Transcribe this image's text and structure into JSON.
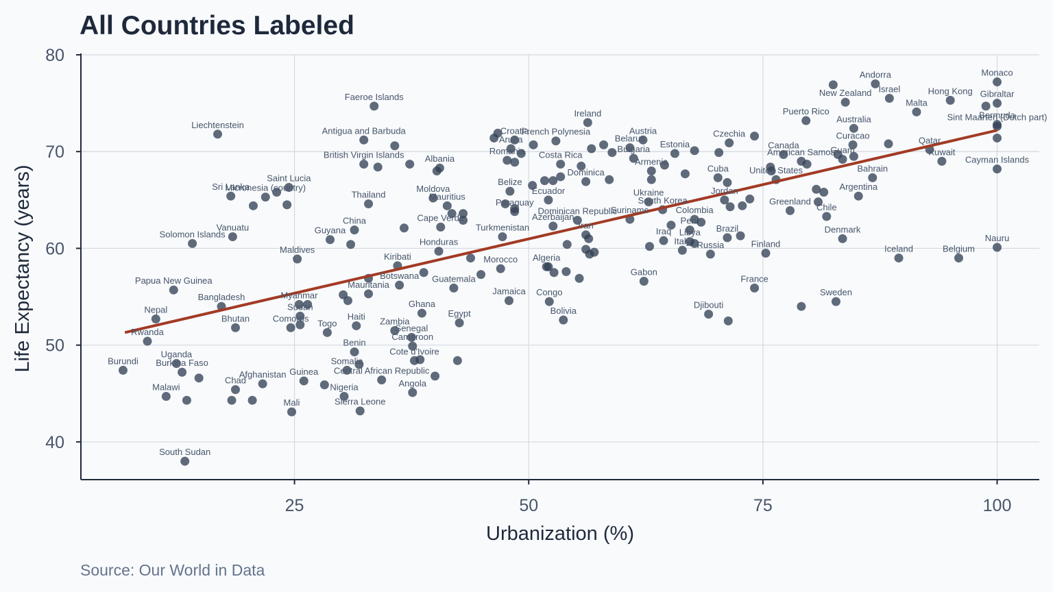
{
  "chart_data": {
    "type": "scatter",
    "title": "All Countries Labeled",
    "xlabel": "Urbanization (%)",
    "ylabel": "Life Expectancy (years)",
    "source": "Source: Our World in Data",
    "xlim": [
      2.2,
      104.5
    ],
    "ylim": [
      36.1,
      80
    ],
    "xticks": [
      25,
      50,
      75,
      100
    ],
    "yticks": [
      40,
      50,
      60,
      70,
      80
    ],
    "grid": true,
    "color": "#334155",
    "trend": {
      "color": "#a33a24",
      "x": [
        6.9,
        100
      ],
      "y": [
        51.3,
        72.2
      ]
    },
    "x": [
      6.7,
      9.3,
      10.2,
      12.1,
      14.1,
      12.4,
      13.0,
      11.3,
      13.3,
      16.8,
      18.2,
      18.4,
      17.2,
      18.7,
      21.6,
      18.7,
      18.3,
      20.5,
      13.5,
      14.8,
      24.4,
      21.9,
      20.6,
      23.1,
      24.2,
      25.3,
      25.5,
      25.6,
      24.6,
      26.4,
      25.6,
      24.7,
      26.0,
      32.4,
      33.5,
      32.4,
      33.9,
      35.7,
      37.3,
      28.8,
      32.9,
      31.4,
      31.0,
      36.7,
      28.5,
      31.6,
      31.4,
      30.6,
      31.9,
      30.3,
      28.2,
      32.0,
      34.3,
      30.2,
      30.7,
      32.9,
      32.9,
      36.2,
      36.0,
      35.7,
      37.5,
      37.6,
      37.8,
      38.4,
      37.6,
      38.6,
      38.8,
      40.4,
      40.6,
      39.8,
      40.5,
      40.2,
      41.3,
      41.8,
      43.0,
      43.0,
      43.8,
      40.0,
      42.4,
      42.6,
      42.0,
      44.9,
      47.0,
      47.9,
      47.2,
      48.5,
      48.5,
      48.0,
      47.5,
      47.7,
      48.5,
      49.2,
      48.5,
      46.7,
      46.3,
      48.1,
      50.5,
      52.9,
      53.4,
      56.1,
      53.4,
      51.7,
      52.6,
      50.4,
      52.1,
      52.6,
      55.2,
      56.1,
      56.4,
      54.1,
      56.1,
      57.0,
      56.5,
      51.9,
      52.1,
      52.7,
      54.0,
      55.4,
      52.2,
      53.7,
      56.3,
      56.7,
      58.0,
      58.9,
      60.8,
      55.6,
      58.6,
      62.2,
      61.2,
      64.5,
      63.1,
      63.1,
      62.8,
      64.3,
      60.8,
      65.6,
      66.7,
      67.7,
      68.4,
      67.2,
      65.2,
      64.4,
      67.2,
      66.4,
      69.4,
      62.3,
      69.2,
      71.3,
      62.9,
      67.7,
      71.2,
      72.6,
      70.9,
      71.5,
      72.8,
      73.6,
      70.2,
      71.2,
      71.4,
      74.1,
      70.3,
      67.7,
      76.4,
      75.8,
      75.9,
      77.2,
      79.1,
      79.7,
      75.3,
      74.1,
      77.9,
      79.6,
      79.1,
      82.8,
      81.8,
      80.9,
      80.7,
      81.5,
      83.5,
      85.2,
      86.7,
      83.5,
      83.0,
      84.6,
      84.7,
      84.7,
      83.8,
      87.0,
      82.5,
      88.5,
      88.4,
      91.4,
      95.0,
      92.8,
      94.1,
      89.5,
      95.9,
      100,
      100,
      98.8,
      100,
      100,
      100,
      100,
      100
    ],
    "y": [
      47.4,
      50.4,
      52.7,
      55.7,
      60.5,
      48.1,
      47.2,
      44.7,
      38.0,
      71.8,
      65.4,
      61.2,
      54.0,
      51.8,
      46.0,
      45.4,
      44.3,
      44.3,
      44.3,
      46.6,
      66.3,
      65.3,
      64.4,
      65.8,
      64.5,
      58.9,
      54.2,
      53.0,
      51.8,
      54.2,
      52.1,
      43.1,
      46.3,
      71.2,
      74.7,
      68.7,
      68.4,
      70.6,
      68.7,
      60.9,
      64.6,
      61.9,
      60.4,
      62.1,
      51.3,
      52.0,
      49.3,
      47.4,
      48.0,
      44.7,
      45.9,
      43.2,
      46.4,
      55.2,
      54.6,
      55.3,
      56.9,
      56.2,
      58.2,
      51.5,
      50.8,
      49.9,
      48.4,
      48.5,
      45.1,
      53.3,
      57.5,
      59.7,
      62.2,
      65.2,
      68.3,
      68.0,
      64.4,
      63.6,
      63.6,
      62.9,
      59.0,
      46.8,
      48.4,
      52.3,
      55.9,
      57.3,
      57.9,
      54.6,
      61.2,
      63.8,
      64.1,
      65.9,
      64.6,
      69.1,
      68.9,
      69.8,
      71.2,
      71.9,
      71.4,
      70.3,
      70.7,
      71.1,
      68.7,
      66.9,
      67.4,
      67.0,
      67.0,
      66.5,
      65.0,
      62.3,
      62.9,
      61.4,
      61.0,
      60.4,
      59.9,
      59.6,
      59.4,
      58.1,
      58.1,
      57.5,
      57.6,
      56.9,
      54.5,
      52.6,
      73.0,
      70.3,
      70.7,
      69.9,
      70.4,
      68.5,
      67.1,
      71.2,
      69.3,
      68.6,
      68.0,
      67.1,
      64.8,
      64.0,
      63.0,
      69.8,
      67.7,
      63.0,
      62.7,
      61.9,
      62.4,
      60.8,
      60.7,
      59.8,
      59.4,
      56.6,
      53.2,
      52.5,
      60.2,
      60.5,
      61.1,
      61.3,
      65.0,
      64.3,
      64.4,
      65.1,
      67.3,
      66.8,
      70.9,
      71.6,
      69.9,
      70.1,
      67.1,
      68.4,
      68.0,
      69.7,
      69.0,
      68.7,
      59.5,
      55.9,
      63.9,
      73.2,
      54.0,
      54.5,
      63.3,
      64.8,
      66.1,
      65.8,
      61.0,
      65.4,
      67.3,
      69.2,
      69.7,
      70.7,
      69.5,
      72.4,
      75.1,
      77.0,
      76.9,
      75.5,
      70.8,
      74.1,
      75.3,
      70.2,
      69.0,
      59.0,
      59.0,
      77.2,
      75.0,
      74.7,
      72.8,
      72.6,
      71.4,
      68.2,
      60.1
    ],
    "labels": [
      "Burundi",
      "Rwanda",
      "Nepal",
      "Papua New Guinea",
      "Solomon Islands",
      "Uganda",
      "Burkina Faso",
      "Malawi",
      "South Sudan",
      "Liechtenstein",
      "Sri Lanka",
      "Vanuatu",
      "Bangladesh",
      "Bhutan",
      "Afghanistan",
      "Chad",
      null,
      null,
      null,
      null,
      "Saint Lucia",
      "Micronesia (country)",
      null,
      null,
      null,
      "Maldives",
      "Myanmar",
      "Sudan",
      "Comoros",
      null,
      null,
      "Mali",
      "Guinea",
      "Antigua and Barbuda",
      "Faeroe Islands",
      "British Virgin Islands",
      null,
      null,
      null,
      "Guyana",
      "Thailand",
      "China",
      null,
      null,
      "Togo",
      "Haiti",
      "Benin",
      "Somalia",
      null,
      "Nigeria",
      null,
      "Sierra Leone",
      "Central African Republic",
      null,
      null,
      "Mauritania",
      null,
      "Botswana",
      "Kiribati",
      "Zambia",
      "Senegal",
      "Cameroon",
      "Cote d'Ivoire",
      null,
      "Angola",
      "Ghana",
      null,
      "Honduras",
      "Cape Verde",
      "Moldova",
      "Albania",
      null,
      "Mauritius",
      null,
      null,
      null,
      null,
      null,
      null,
      "Egypt",
      "Guatemala",
      null,
      "Morocco",
      "Jamaica",
      "Turkmenistan",
      "Paraguay",
      null,
      "Belize",
      null,
      "Romania",
      null,
      null,
      "Croatia",
      null,
      null,
      "Aruba",
      null,
      "French Polynesia",
      "Costa Rica",
      "Dominica",
      null,
      null,
      null,
      null,
      "Ecuador",
      "Azerbaijan",
      "Dominican Republic",
      "Iran",
      null,
      null,
      null,
      null,
      null,
      "Algeria",
      null,
      null,
      null,
      null,
      "Congo",
      "Bolivia",
      "Ireland",
      null,
      null,
      null,
      "Belarus",
      null,
      null,
      "Austria",
      "Bulgaria",
      null,
      "Armenia",
      null,
      "Ukraine",
      "South Korea",
      "Suriname",
      "Estonia",
      null,
      "Colombia",
      null,
      "Peru",
      null,
      "Iraq",
      "Libya",
      "Italy",
      "Russia",
      "Gabon",
      "Djibouti",
      null,
      null,
      null,
      "Brazil",
      null,
      "Jordan",
      null,
      null,
      null,
      "Cuba",
      null,
      "Czechia",
      null,
      null,
      null,
      "United States",
      null,
      null,
      "Canada",
      "American Samoa",
      null,
      "Finland",
      "France",
      "Greenland",
      "Puerto Rico",
      null,
      "Sweden",
      "Chile",
      null,
      null,
      null,
      "Denmark",
      "Argentina",
      "Bahrain",
      "Guam",
      null,
      "Curacao",
      null,
      "Australia",
      "New Zealand",
      "Andorra",
      null,
      "Israel",
      null,
      "Malta",
      "Hong Kong",
      "Qatar",
      "Kuwait",
      "Iceland",
      "Belgium",
      "Monaco",
      "Gibraltar",
      null,
      "Bermuda",
      "Sint Maarten (Dutch part)",
      null,
      "Cayman Islands",
      "Nauru"
    ]
  }
}
